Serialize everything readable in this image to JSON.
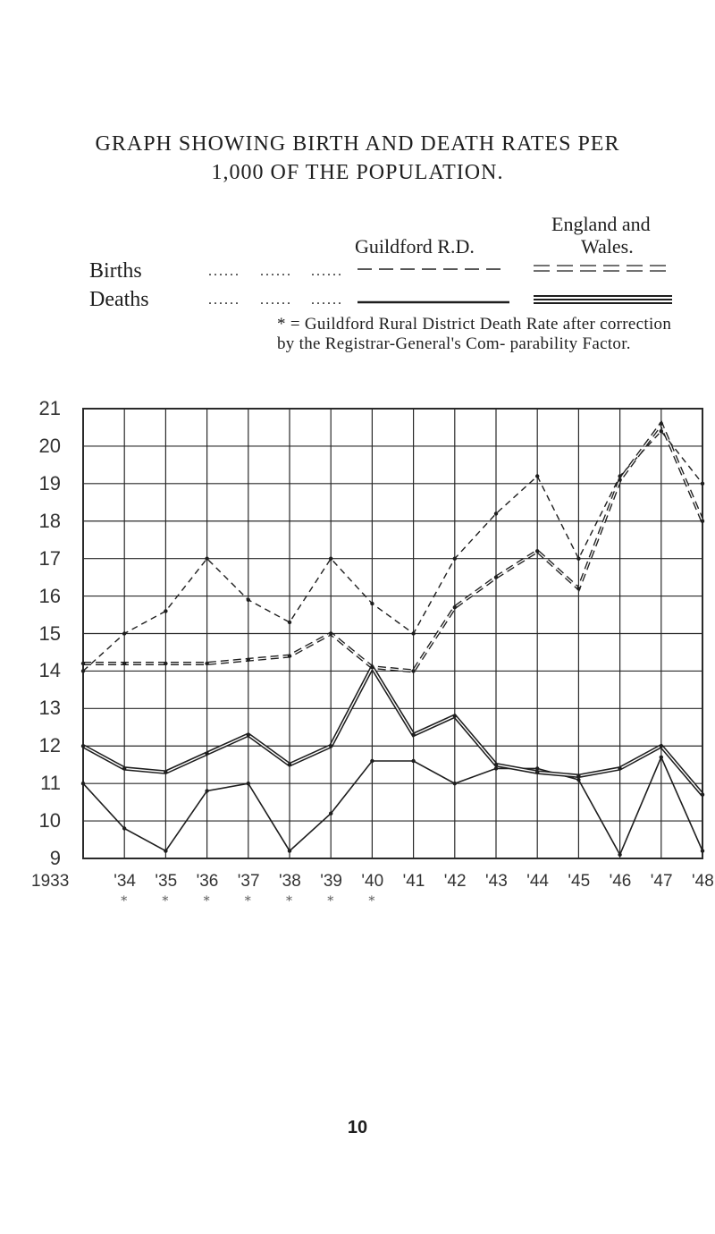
{
  "title_line1": "GRAPH SHOWING BIRTH AND DEATH RATES PER",
  "title_line2": "1,000 OF THE POPULATION.",
  "legend": {
    "col_guildford": "Guildford R.D.",
    "col_england_line1": "England and",
    "col_england_line2": "Wales.",
    "row_births": "Births",
    "row_deaths": "Deaths",
    "dots": "......",
    "footnote": "* = Guildford Rural District Death Rate after correction by the Registrar-General's Com- parability Factor."
  },
  "page_number": "10",
  "colors": {
    "ink": "#1e1e1e",
    "grid": "#2a2a2a",
    "paper": "#ffffff"
  },
  "chart_data": {
    "type": "line",
    "x": [
      "1933",
      "'34",
      "'35",
      "'36",
      "'37",
      "'38",
      "'39",
      "'40",
      "'41",
      "'42",
      "'43",
      "'44",
      "'45",
      "'46",
      "'47",
      "'48"
    ],
    "y_ticks": [
      "21",
      "20",
      "19",
      "18",
      "17",
      "16",
      "15",
      "14",
      "13",
      "12",
      "11",
      "10",
      "9"
    ],
    "ylim": [
      9,
      21
    ],
    "starred_years": [
      "'34",
      "'35",
      "'36",
      "'37",
      "'38",
      "'39",
      "'40"
    ],
    "star_marks": [
      "*",
      "*",
      "*",
      "*",
      "*",
      "*",
      "*"
    ],
    "grid": true,
    "series": [
      {
        "key": "births_guildford",
        "values": [
          14.0,
          15.0,
          15.6,
          17.0,
          15.9,
          15.3,
          17.0,
          15.8,
          15.0,
          17.0,
          18.2,
          19.2,
          17.0,
          19.2,
          20.4,
          19.0
        ],
        "stroke": "dashed"
      },
      {
        "key": "births_england",
        "values": [
          14.2,
          14.2,
          14.2,
          14.2,
          14.3,
          14.4,
          15.0,
          14.1,
          14.0,
          15.7,
          16.5,
          17.2,
          16.2,
          19.1,
          20.6,
          18.0
        ],
        "stroke": "double-dashed"
      },
      {
        "key": "deaths_guildford",
        "values": [
          11.0,
          9.8,
          9.2,
          10.8,
          11.0,
          9.2,
          10.2,
          11.6,
          11.6,
          11.0,
          11.4,
          11.4,
          11.1,
          9.1,
          11.7,
          9.2
        ],
        "stroke": "solid"
      },
      {
        "key": "deaths_england",
        "values": [
          12.0,
          11.4,
          11.3,
          11.8,
          12.3,
          11.5,
          12.0,
          14.1,
          12.3,
          12.8,
          11.5,
          11.3,
          11.2,
          11.4,
          12.0,
          10.7
        ],
        "stroke": "solid-double"
      }
    ]
  }
}
